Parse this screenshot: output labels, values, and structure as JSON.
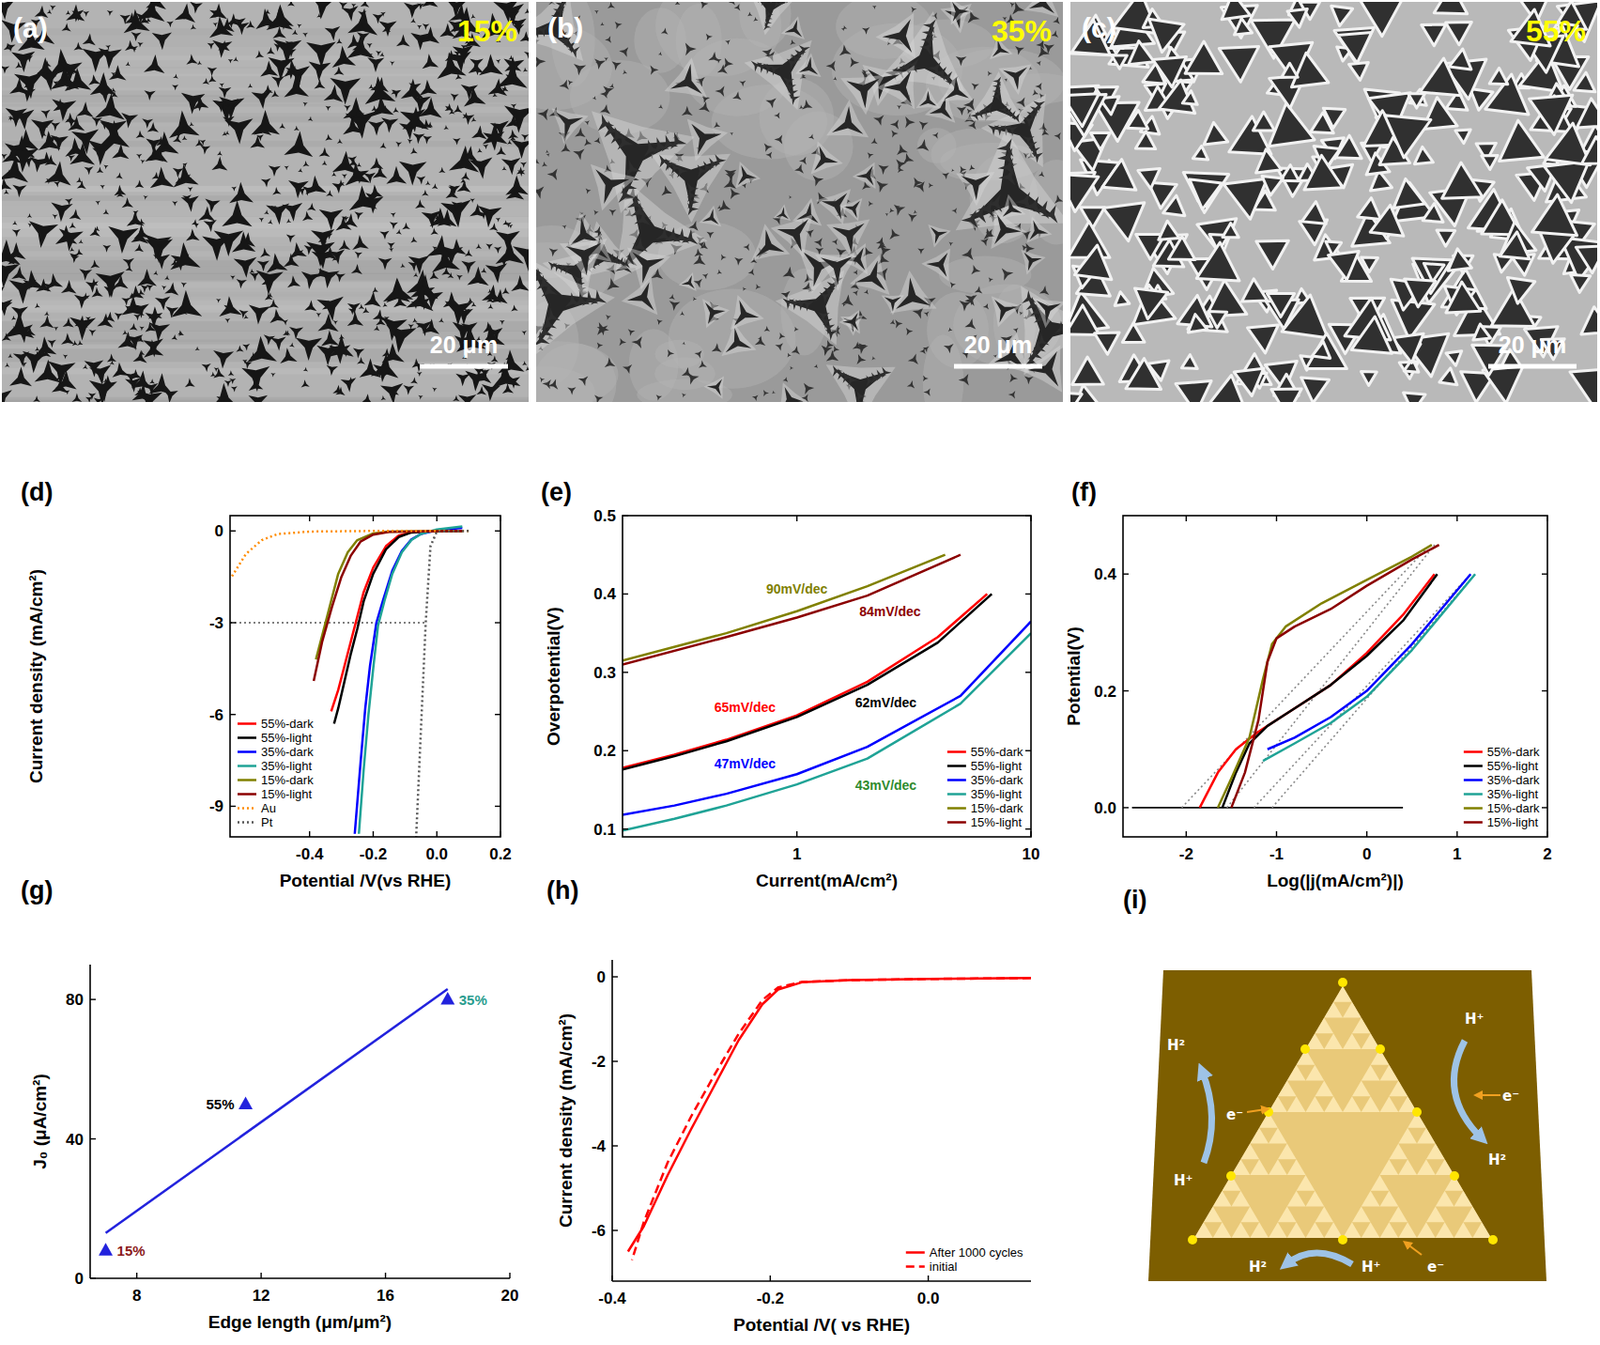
{
  "images": [
    {
      "panel_label": "(a)",
      "tag": "15%",
      "scale_bar": "20 μm"
    },
    {
      "panel_label": "(b)",
      "tag": "35%",
      "scale_bar": "20 μm"
    },
    {
      "panel_label": "(c)",
      "tag": "55%",
      "scale_bar": "20 μm"
    }
  ],
  "chart_data": [
    {
      "type": "line",
      "panel_label": "(d)",
      "x_label": "Potential /V(vs RHE)",
      "y_label": "Current density (mA/cm²)",
      "xlim": [
        -0.65,
        0.2
      ],
      "xticks": [
        -0.4,
        -0.2,
        {
          "value": 0,
          "label": "0.0"
        },
        0.2
      ],
      "ylim": [
        -10,
        0.5
      ],
      "yticks": [
        -9,
        -6,
        -3,
        0
      ],
      "legend": "lower left",
      "series": [
        {
          "name": "55%-dark",
          "color": "#ff0000",
          "line_style": "solid",
          "x": [
            0.08,
            0,
            -0.08,
            -0.12,
            -0.16,
            -0.2,
            -0.23,
            -0.25,
            -0.27,
            -0.29,
            -0.31,
            -0.332
          ],
          "values": [
            0,
            0,
            -0.04,
            -0.15,
            -0.5,
            -1.2,
            -2,
            -2.8,
            -3.6,
            -4.4,
            -5.2,
            -5.9
          ]
        },
        {
          "name": "55%-light",
          "color": "#000000",
          "line_style": "solid",
          "x": [
            0.08,
            0,
            -0.08,
            -0.12,
            -0.16,
            -0.2,
            -0.23,
            -0.25,
            -0.27,
            -0.29,
            -0.31,
            -0.323
          ],
          "values": [
            0,
            0,
            -0.05,
            -0.2,
            -0.6,
            -1.4,
            -2.3,
            -3.2,
            -4,
            -4.9,
            -5.8,
            -6.3
          ]
        },
        {
          "name": "35%-dark",
          "color": "#0000ff",
          "line_style": "solid",
          "x": [
            0.08,
            0,
            -0.05,
            -0.08,
            -0.11,
            -0.14,
            -0.17,
            -0.19,
            -0.21,
            -0.225,
            -0.24,
            -0.258
          ],
          "values": [
            0.1,
            0.02,
            -0.1,
            -0.28,
            -0.65,
            -1.3,
            -2.3,
            -3,
            -4.4,
            -5.8,
            -7.6,
            -9.9
          ]
        },
        {
          "name": "35%-light",
          "color": "#1fa396",
          "line_style": "solid",
          "x": [
            0.08,
            0,
            -0.05,
            -0.08,
            -0.11,
            -0.14,
            -0.165,
            -0.185,
            -0.2,
            -0.215,
            -0.23,
            -0.245
          ],
          "values": [
            0.15,
            0.05,
            -0.1,
            -0.3,
            -0.7,
            -1.4,
            -2.3,
            -3.1,
            -4.5,
            -6,
            -7.8,
            -9.9
          ]
        },
        {
          "name": "15%-dark",
          "color": "#808000",
          "line_style": "solid",
          "x": [
            0.08,
            -0.15,
            -0.2,
            -0.25,
            -0.28,
            -0.31,
            -0.34,
            -0.36,
            -0.38
          ],
          "values": [
            0,
            -0.02,
            -0.08,
            -0.3,
            -0.7,
            -1.4,
            -2.6,
            -3.4,
            -4.2
          ]
        },
        {
          "name": "15%-light",
          "color": "#8b0000",
          "line_style": "solid",
          "x": [
            0.08,
            -0.15,
            -0.2,
            -0.24,
            -0.27,
            -0.3,
            -0.33,
            -0.36,
            -0.387
          ],
          "values": [
            0,
            -0.03,
            -0.12,
            -0.35,
            -0.8,
            -1.5,
            -2.5,
            -3.6,
            -4.9
          ]
        },
        {
          "name": "Au",
          "color": "#ff8c00",
          "line_style": "dotted",
          "x": [
            0.1,
            -0.2,
            -0.4,
            -0.5,
            -0.55,
            -0.6,
            -0.645
          ],
          "values": [
            0,
            0,
            -0.02,
            -0.1,
            -0.3,
            -0.75,
            -1.5
          ]
        },
        {
          "name": "Pt",
          "color": "#555555",
          "line_style": "dotted",
          "x": [
            0.1,
            0,
            -0.02,
            -0.035,
            -0.05,
            -0.065
          ],
          "values": [
            0,
            -0.02,
            -0.5,
            -3,
            -6.5,
            -10
          ]
        }
      ],
      "reference_lines": [
        {
          "x": [
            -0.65,
            -0.03
          ],
          "y": [
            -3,
            -3
          ],
          "color": "#555555",
          "line_style": "dotted"
        }
      ]
    },
    {
      "type": "line",
      "panel_label": "(e)",
      "x_label": "Current(mA/cm²)",
      "y_label": "Overpotential(V)",
      "log": "x",
      "xlim": [
        0.18,
        10
      ],
      "xticks": [
        1,
        10
      ],
      "ylim": [
        0.09,
        0.5
      ],
      "yticks": [
        0.1,
        0.2,
        0.3,
        0.4,
        0.5
      ],
      "legend": "lower right",
      "series": [
        {
          "name": "55%-dark",
          "color": "#ff0000",
          "line_style": "solid",
          "x": [
            0.18,
            0.3,
            0.5,
            1,
            2,
            4,
            6.5
          ],
          "values": [
            0.178,
            0.195,
            0.214,
            0.245,
            0.288,
            0.345,
            0.4
          ]
        },
        {
          "name": "55%-light",
          "color": "#000000",
          "line_style": "solid",
          "x": [
            0.18,
            0.3,
            0.5,
            1,
            2,
            4,
            6.8
          ],
          "values": [
            0.176,
            0.193,
            0.212,
            0.243,
            0.284,
            0.338,
            0.4
          ]
        },
        {
          "name": "35%-dark",
          "color": "#0000ff",
          "line_style": "solid",
          "x": [
            0.18,
            0.3,
            0.5,
            1,
            2,
            5,
            10
          ],
          "values": [
            0.118,
            0.13,
            0.145,
            0.17,
            0.205,
            0.27,
            0.365
          ]
        },
        {
          "name": "35%-light",
          "color": "#1fa396",
          "line_style": "solid",
          "x": [
            0.18,
            0.3,
            0.5,
            1,
            2,
            5,
            10
          ],
          "values": [
            0.098,
            0.113,
            0.13,
            0.157,
            0.19,
            0.26,
            0.35
          ]
        },
        {
          "name": "15%-dark",
          "color": "#808000",
          "line_style": "solid",
          "x": [
            0.18,
            0.5,
            1,
            2,
            4.3
          ],
          "values": [
            0.315,
            0.35,
            0.378,
            0.41,
            0.45
          ]
        },
        {
          "name": "15%-light",
          "color": "#8b0000",
          "line_style": "solid",
          "x": [
            0.18,
            0.5,
            1,
            2,
            5
          ],
          "values": [
            0.31,
            0.345,
            0.37,
            0.398,
            0.45
          ]
        }
      ],
      "annotations": [
        {
          "text": "90mV/dec",
          "x": 1,
          "y": 0.4,
          "color": "#808000"
        },
        {
          "text": "84mV/dec",
          "x": 2.5,
          "y": 0.372,
          "color": "#8b0000"
        },
        {
          "text": "65mV/dec",
          "x": 0.6,
          "y": 0.25,
          "color": "#ff0000"
        },
        {
          "text": "62mV/dec",
          "x": 2.4,
          "y": 0.255,
          "color": "#000000"
        },
        {
          "text": "47mV/dec",
          "x": 0.6,
          "y": 0.178,
          "color": "#0000ff"
        },
        {
          "text": "43mV/dec",
          "x": 2.4,
          "y": 0.15,
          "color": "#2e8b2e"
        }
      ]
    },
    {
      "type": "line",
      "panel_label": "(f)",
      "x_label": "Log(|j(mA/cm²)|)",
      "y_label": "Potential(V)",
      "xlim": [
        -2.7,
        2
      ],
      "xticks": [
        -2,
        -1,
        0,
        1,
        2
      ],
      "ylim": [
        -0.05,
        0.5
      ],
      "yticks": [
        {
          "value": 0,
          "label": "0.0"
        },
        0.2,
        0.4
      ],
      "legend": "lower right",
      "series": [
        {
          "name": "55%-dark",
          "color": "#ff0000",
          "line_style": "solid",
          "x": [
            -1.85,
            -1.65,
            -1.45,
            -1.2,
            -0.8,
            -0.4,
            0,
            0.4,
            0.75
          ],
          "values": [
            0,
            0.06,
            0.1,
            0.13,
            0.17,
            0.21,
            0.265,
            0.33,
            0.4
          ]
        },
        {
          "name": "55%-light",
          "color": "#000000",
          "line_style": "solid",
          "x": [
            -1.6,
            -1.45,
            -1.3,
            -1.1,
            -0.8,
            -0.4,
            0,
            0.4,
            0.78
          ],
          "values": [
            0,
            0.06,
            0.11,
            0.14,
            0.17,
            0.21,
            0.26,
            0.32,
            0.4
          ]
        },
        {
          "name": "35%-dark",
          "color": "#0000ff",
          "line_style": "solid",
          "x": [
            -1.1,
            -0.8,
            -0.4,
            0,
            0.5,
            1.15
          ],
          "values": [
            0.1,
            0.12,
            0.155,
            0.2,
            0.28,
            0.4
          ]
        },
        {
          "name": "35%-light",
          "color": "#1fa396",
          "line_style": "solid",
          "x": [
            -1.15,
            -0.8,
            -0.4,
            0,
            0.5,
            1.2
          ],
          "values": [
            0.08,
            0.11,
            0.145,
            0.19,
            0.27,
            0.4
          ]
        },
        {
          "name": "15%-dark",
          "color": "#808000",
          "line_style": "solid",
          "x": [
            -1.65,
            -1.5,
            -1.3,
            -1.15,
            -1.05,
            -0.9,
            -0.5,
            0,
            0.5,
            0.72
          ],
          "values": [
            0,
            0.05,
            0.12,
            0.22,
            0.28,
            0.31,
            0.35,
            0.39,
            0.43,
            0.45
          ]
        },
        {
          "name": "15%-light",
          "color": "#8b0000",
          "line_style": "solid",
          "x": [
            -1.5,
            -1.35,
            -1.2,
            -1.1,
            -1,
            -0.8,
            -0.4,
            0,
            0.5,
            0.8
          ],
          "values": [
            0,
            0.06,
            0.15,
            0.25,
            0.29,
            0.31,
            0.34,
            0.38,
            0.425,
            0.45
          ]
        }
      ],
      "reference_lines": [
        {
          "x": [
            -2.6,
            0.4
          ],
          "y": [
            0,
            0
          ],
          "color": "#000000",
          "line_style": "solid"
        },
        {
          "x": [
            -2.05,
            0.7
          ],
          "y": [
            0,
            0.45
          ],
          "color": "#888888",
          "line_style": "dotted"
        },
        {
          "x": [
            -1.55,
            0.75
          ],
          "y": [
            0,
            0.45
          ],
          "color": "#888888",
          "line_style": "dotted"
        },
        {
          "x": [
            -1.25,
            1.15
          ],
          "y": [
            0,
            0.4
          ],
          "color": "#888888",
          "line_style": "dotted"
        },
        {
          "x": [
            -1.05,
            1.2
          ],
          "y": [
            0,
            0.4
          ],
          "color": "#888888",
          "line_style": "dotted"
        }
      ]
    },
    {
      "type": "scatter",
      "panel_label": "(g)",
      "x_label": "Edge length (μm/μm²)",
      "y_label": "J₀ (μA/cm²)",
      "xlim": [
        6.5,
        20
      ],
      "xticks": [
        8,
        12,
        16,
        20
      ],
      "ylim": [
        0,
        90
      ],
      "yticks": [
        0,
        40,
        80
      ],
      "series": [
        {
          "type": "line",
          "color": "#2222dd",
          "line_style": "solid",
          "x": [
            7,
            18
          ],
          "values": [
            13,
            83
          ]
        },
        {
          "type": "scatter",
          "marker": "triangle",
          "color": "#2222dd",
          "x": [
            7,
            11.5,
            18
          ],
          "values": [
            8,
            50,
            80
          ],
          "point_labels": [
            "15%",
            "55%",
            "35%"
          ],
          "label_colors": [
            "#8b1a1a",
            "#000000",
            "#2a9d8f"
          ]
        }
      ]
    },
    {
      "type": "line",
      "panel_label": "(h)",
      "x_label": "Potential /V( vs RHE)",
      "y_label": "Current density (mA/cm²)",
      "xlim": [
        -0.4,
        0.13
      ],
      "xticks": [
        -0.4,
        -0.2,
        {
          "value": 0,
          "label": "0.0"
        }
      ],
      "ylim": [
        -7.2,
        0.4
      ],
      "yticks": [
        -6,
        -4,
        -2,
        0
      ],
      "legend": "lower right",
      "series": [
        {
          "name": "After 1000 cycles",
          "color": "#ff0000",
          "line_style": "solid",
          "x": [
            0.13,
            0,
            -0.1,
            -0.16,
            -0.19,
            -0.21,
            -0.24,
            -0.27,
            -0.3,
            -0.33,
            -0.36,
            -0.38
          ],
          "values": [
            -0.03,
            -0.05,
            -0.08,
            -0.13,
            -0.3,
            -0.65,
            -1.5,
            -2.55,
            -3.6,
            -4.7,
            -5.9,
            -6.5
          ]
        },
        {
          "name": "initial",
          "color": "#ff0000",
          "line_style": "dashed",
          "x": [
            0.13,
            0,
            -0.1,
            -0.16,
            -0.19,
            -0.21,
            -0.24,
            -0.27,
            -0.3,
            -0.33,
            -0.36,
            -0.375
          ],
          "values": [
            -0.03,
            -0.05,
            -0.08,
            -0.12,
            -0.25,
            -0.55,
            -1.35,
            -2.3,
            -3.3,
            -4.4,
            -5.8,
            -6.7
          ]
        }
      ]
    }
  ],
  "schematic": {
    "panel_label": "(i)",
    "labels": [
      "H²",
      "H⁺",
      "e⁻",
      "H⁺",
      "H²",
      "e⁻",
      "H²",
      "H⁺",
      "e⁻"
    ]
  }
}
